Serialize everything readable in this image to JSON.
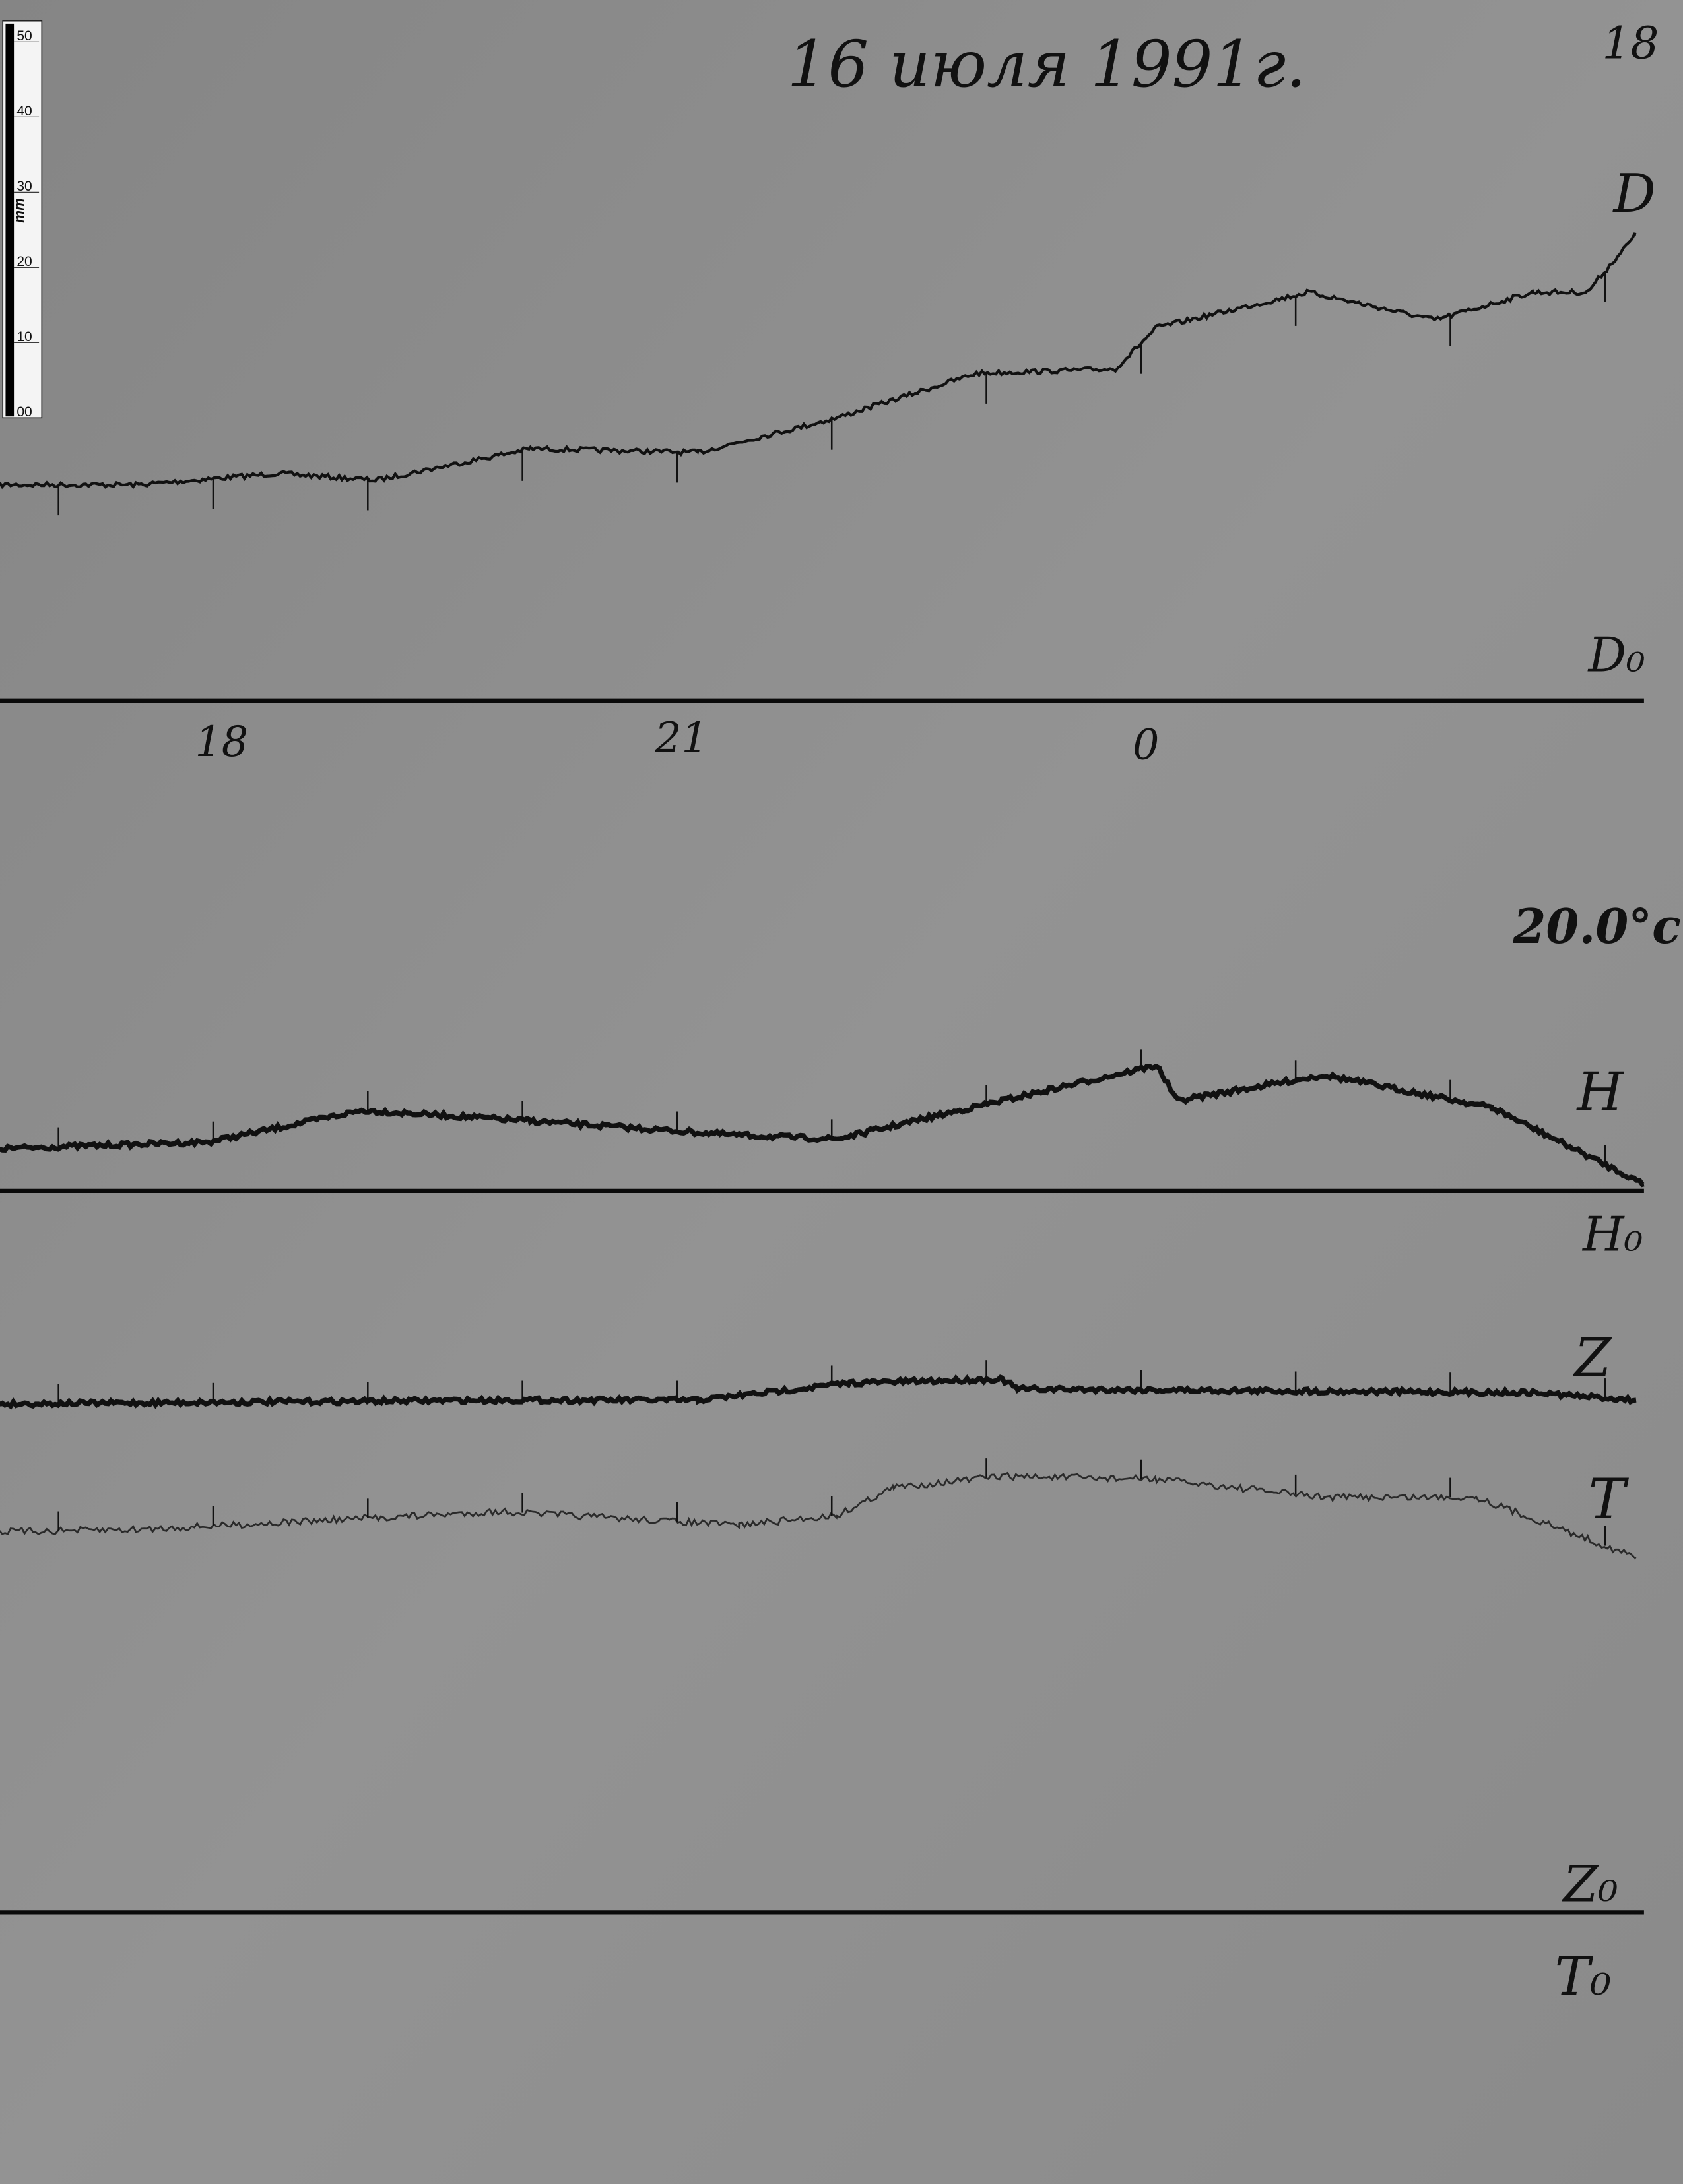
{
  "header": {
    "date_title": "16 июля 1991г.",
    "page_number": "18"
  },
  "scale_bar": {
    "unit": "mm",
    "ticks": [
      "50",
      "40",
      "30",
      "20",
      "10",
      "00"
    ]
  },
  "labels": {
    "D": "D",
    "D0": "D₀",
    "temperature": "20.0°c",
    "H": "H",
    "H0": "H₀",
    "Z": "Z",
    "T": "T",
    "Z0": "Z₀",
    "T0": "T₀"
  },
  "colors": {
    "paper": "#8a8a8a",
    "ink": "#111111",
    "trace_T": "#2a2a2a"
  },
  "chart_data": {
    "type": "line",
    "title": "16 июля 1991г.",
    "xlabel": "",
    "ylabel": "",
    "x_ticks": [
      "18",
      "21",
      "0"
    ],
    "y_unit": "mm",
    "grid": false,
    "series": [
      {
        "name": "D",
        "baseline": "D₀",
        "points": [
          [
            "16:36",
            28.7
          ],
          [
            "17:30",
            28.7
          ],
          [
            "18:24",
            30.2
          ],
          [
            "19:02",
            29.3
          ],
          [
            "20:02",
            33.5
          ],
          [
            "21:07",
            33.0
          ],
          [
            "22:01",
            37.6
          ],
          [
            "22:55",
            43.5
          ],
          [
            "23:49",
            44.1
          ],
          [
            "00:05",
            49.6
          ],
          [
            "01:04",
            54.3
          ],
          [
            "01:53",
            50.6
          ],
          [
            "02:31",
            54.3
          ],
          [
            "02:52",
            54.3
          ],
          [
            "03:11",
            62.0
          ]
        ]
      },
      {
        "name": "H",
        "baseline": "H₀",
        "points": [
          [
            "16:36",
            5.6
          ],
          [
            "17:57",
            6.5
          ],
          [
            "18:57",
            10.7
          ],
          [
            "20:02",
            9.3
          ],
          [
            "21:23",
            7.4
          ],
          [
            "22:01",
            6.9
          ],
          [
            "23:05",
            12.0
          ],
          [
            "00:05",
            16.7
          ],
          [
            "00:13",
            12.0
          ],
          [
            "01:10",
            15.4
          ],
          [
            "02:15",
            11.1
          ],
          [
            "03:14",
            0.9
          ]
        ]
      },
      {
        "name": "Z",
        "baseline": "Z₀",
        "points": [
          [
            "16:36",
            67.6
          ],
          [
            "19:51",
            68.1
          ],
          [
            "21:07",
            68.1
          ],
          [
            "22:06",
            70.4
          ],
          [
            "23:05",
            70.9
          ],
          [
            "23:11",
            69.6
          ],
          [
            "02:31",
            69.1
          ],
          [
            "03:11",
            68.1
          ]
        ]
      },
      {
        "name": "T",
        "baseline": "T₀",
        "points": [
          [
            "16:36",
            50.6
          ],
          [
            "17:30",
            50.9
          ],
          [
            "19:51",
            53.3
          ],
          [
            "21:23",
            51.5
          ],
          [
            "22:01",
            52.8
          ],
          [
            "22:23",
            56.5
          ],
          [
            "23:05",
            58.0
          ],
          [
            "00:05",
            57.6
          ],
          [
            "01:10",
            55.2
          ],
          [
            "02:09",
            55.2
          ],
          [
            "03:11",
            47.2
          ]
        ]
      }
    ]
  }
}
